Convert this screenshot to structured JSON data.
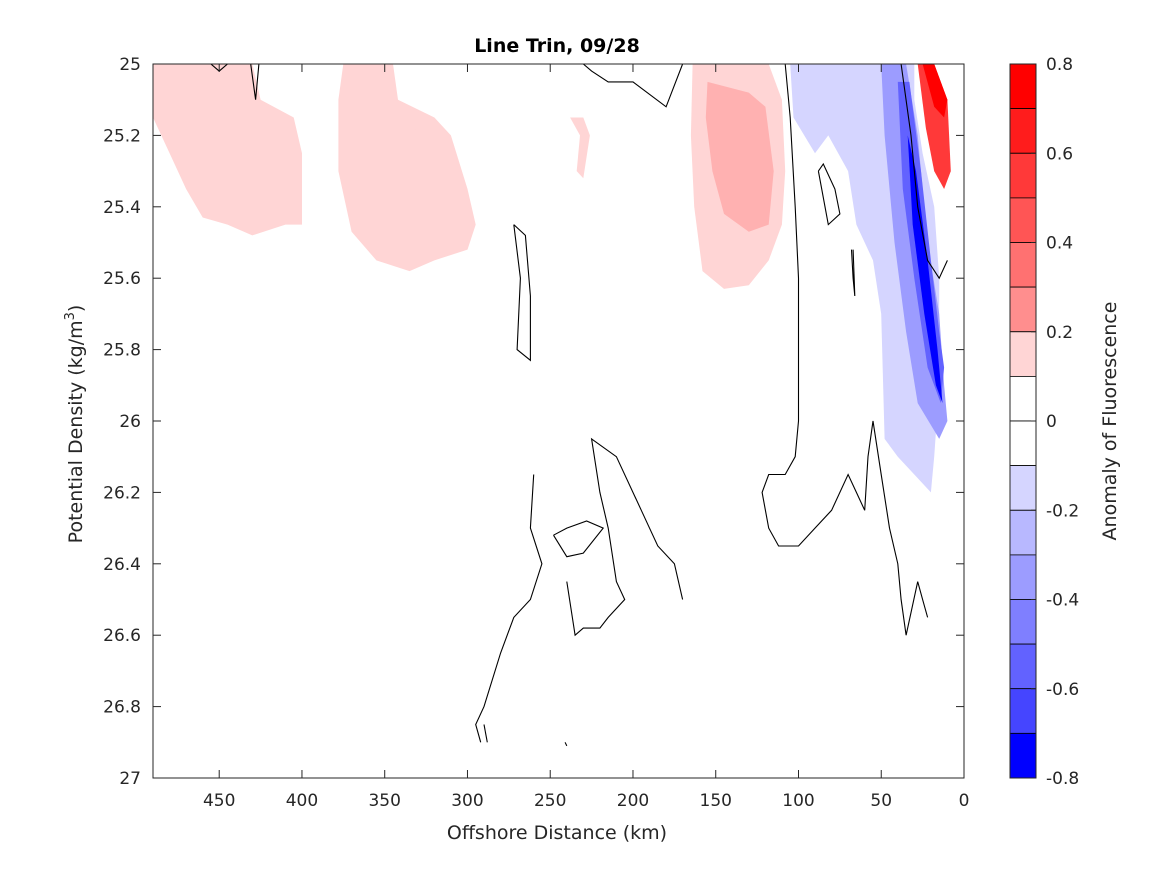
{
  "chart_data": {
    "type": "contour",
    "title": "Line Trin, 09/28",
    "xlabel": "Offshore Distance (km)",
    "ylabel": "Potential Density (kg/m",
    "ylabel_sup": "3",
    "ylabel_close": ")",
    "xlim": [
      490,
      0
    ],
    "x_reversed": true,
    "ylim": [
      25,
      27
    ],
    "y_reversed": true,
    "x_ticks": [
      450,
      400,
      350,
      300,
      250,
      200,
      150,
      100,
      50,
      0
    ],
    "y_ticks": [
      25,
      25.2,
      25.4,
      25.6,
      25.8,
      26,
      26.2,
      26.4,
      26.6,
      26.8,
      27
    ],
    "y_tick_labels": [
      "25",
      "25.2",
      "25.4",
      "25.6",
      "25.8",
      "26",
      "26.2",
      "26.4",
      "26.6",
      "26.8",
      "27"
    ],
    "colorbar": {
      "label": "Anomaly of Fluorescence",
      "clim": [
        -0.8,
        0.8
      ],
      "ticks": [
        0.8,
        0.6,
        0.4,
        0.2,
        0,
        -0.2,
        -0.4,
        -0.6,
        -0.8
      ],
      "tick_labels": [
        "0.8",
        "0.6",
        "0.4",
        "0.2",
        "0",
        "-0.2",
        "-0.4",
        "-0.6",
        "-0.8"
      ],
      "levels": [
        {
          "range": [
            0.7,
            0.8
          ],
          "color": "#ff0000"
        },
        {
          "range": [
            0.6,
            0.7
          ],
          "color": "#ff1c1c"
        },
        {
          "range": [
            0.5,
            0.6
          ],
          "color": "#ff3939"
        },
        {
          "range": [
            0.4,
            0.5
          ],
          "color": "#ff5555"
        },
        {
          "range": [
            0.3,
            0.4
          ],
          "color": "#ff7171"
        },
        {
          "range": [
            0.2,
            0.3
          ],
          "color": "#ff8e8e"
        },
        {
          "range": [
            0.1,
            0.2
          ],
          "color": "#ffd5d5"
        },
        {
          "range": [
            0,
            0.1
          ],
          "color": "#ffffff"
        },
        {
          "range": [
            -0.1,
            0
          ],
          "color": "#ffffff"
        },
        {
          "range": [
            -0.2,
            -0.1
          ],
          "color": "#d5d5ff"
        },
        {
          "range": [
            -0.3,
            -0.2
          ],
          "color": "#b8b8ff"
        },
        {
          "range": [
            -0.4,
            -0.3
          ],
          "color": "#9c9cff"
        },
        {
          "range": [
            -0.5,
            -0.4
          ],
          "color": "#7f7fff"
        },
        {
          "range": [
            -0.6,
            -0.5
          ],
          "color": "#6262ff"
        },
        {
          "range": [
            -0.7,
            -0.6
          ],
          "color": "#4545ff"
        },
        {
          "range": [
            -0.8,
            -0.7
          ],
          "color": "#0000ff"
        }
      ]
    },
    "filled_regions": [
      {
        "level": 0.15,
        "color": "#ffd5d5",
        "points": [
          [
            490,
            25
          ],
          [
            430,
            25
          ],
          [
            425,
            25.1
          ],
          [
            405,
            25.15
          ],
          [
            400,
            25.25
          ],
          [
            400,
            25.45
          ],
          [
            410,
            25.45
          ],
          [
            430,
            25.48
          ],
          [
            445,
            25.45
          ],
          [
            460,
            25.43
          ],
          [
            470,
            25.35
          ],
          [
            480,
            25.25
          ],
          [
            490,
            25.15
          ]
        ]
      },
      {
        "level": 0.15,
        "color": "#ffd5d5",
        "points": [
          [
            375,
            25
          ],
          [
            345,
            25
          ],
          [
            342,
            25.1
          ],
          [
            320,
            25.15
          ],
          [
            310,
            25.2
          ],
          [
            300,
            25.35
          ],
          [
            295,
            25.45
          ],
          [
            300,
            25.52
          ],
          [
            320,
            25.55
          ],
          [
            335,
            25.58
          ],
          [
            355,
            25.55
          ],
          [
            370,
            25.47
          ],
          [
            378,
            25.3
          ],
          [
            378,
            25.1
          ]
        ]
      },
      {
        "level": 0.15,
        "color": "#ffd5d5",
        "points": [
          [
            238,
            25.15
          ],
          [
            232,
            25.2
          ],
          [
            234,
            25.3
          ],
          [
            230,
            25.32
          ],
          [
            226,
            25.2
          ],
          [
            230,
            25.15
          ]
        ]
      },
      {
        "level": 0.15,
        "color": "#ffd5d5",
        "points": [
          [
            164,
            25
          ],
          [
            118,
            25
          ],
          [
            110,
            25.1
          ],
          [
            108,
            25.3
          ],
          [
            110,
            25.45
          ],
          [
            118,
            25.55
          ],
          [
            130,
            25.62
          ],
          [
            145,
            25.63
          ],
          [
            158,
            25.58
          ],
          [
            163,
            25.4
          ],
          [
            165,
            25.2
          ]
        ]
      },
      {
        "level": 0.25,
        "color": "#ffb1b1",
        "points": [
          [
            155,
            25.05
          ],
          [
            130,
            25.08
          ],
          [
            120,
            25.12
          ],
          [
            115,
            25.3
          ],
          [
            118,
            25.45
          ],
          [
            130,
            25.47
          ],
          [
            145,
            25.42
          ],
          [
            152,
            25.3
          ],
          [
            156,
            25.15
          ]
        ]
      },
      {
        "level": 0.15,
        "color": "#ffd5d5",
        "points": [
          [
            331,
            25.18
          ],
          [
            329,
            25.2
          ],
          [
            331,
            25.22
          ],
          [
            333,
            25.2
          ]
        ]
      },
      {
        "level": -0.15,
        "color": "#d5d5ff",
        "points": [
          [
            108,
            25
          ],
          [
            82,
            25
          ],
          [
            60,
            25.02
          ],
          [
            42,
            25.02
          ],
          [
            38,
            25.4
          ],
          [
            38,
            25.85
          ],
          [
            35,
            26.05
          ],
          [
            28,
            26.12
          ],
          [
            22,
            26.17
          ],
          [
            18,
            26.05
          ],
          [
            25,
            25.85
          ],
          [
            30,
            25.6
          ],
          [
            40,
            25.35
          ],
          [
            45,
            25.1
          ],
          [
            48,
            25
          ],
          [
            105,
            25
          ],
          [
            103,
            25.15
          ],
          [
            90,
            25.25
          ],
          [
            82,
            25.2
          ],
          [
            70,
            25.3
          ],
          [
            65,
            25.45
          ],
          [
            55,
            25.55
          ],
          [
            50,
            25.7
          ],
          [
            48,
            26.05
          ],
          [
            40,
            26.1
          ],
          [
            30,
            26.15
          ],
          [
            20,
            26.2
          ],
          [
            18,
            26.1
          ],
          [
            15,
            25.9
          ],
          [
            15,
            25.6
          ],
          [
            18,
            25.4
          ],
          [
            25,
            25.25
          ],
          [
            30,
            25.1
          ],
          [
            30,
            25
          ]
        ]
      },
      {
        "level": -0.3,
        "color": "#9c9cff",
        "points": [
          [
            50,
            25
          ],
          [
            35,
            25
          ],
          [
            28,
            25.2
          ],
          [
            22,
            25.5
          ],
          [
            15,
            25.7
          ],
          [
            12,
            25.9
          ],
          [
            10,
            26
          ],
          [
            15,
            26.05
          ],
          [
            28,
            25.95
          ],
          [
            35,
            25.75
          ],
          [
            42,
            25.5
          ],
          [
            48,
            25.2
          ]
        ]
      },
      {
        "level": -0.55,
        "color": "#6262ff",
        "points": [
          [
            40,
            25.05
          ],
          [
            33,
            25.05
          ],
          [
            26,
            25.3
          ],
          [
            20,
            25.55
          ],
          [
            15,
            25.75
          ],
          [
            12,
            25.85
          ],
          [
            14,
            25.95
          ],
          [
            22,
            25.85
          ],
          [
            30,
            25.6
          ],
          [
            37,
            25.35
          ]
        ]
      },
      {
        "level": -0.75,
        "color": "#0000ff",
        "points": [
          [
            34,
            25.2
          ],
          [
            29,
            25.3
          ],
          [
            22,
            25.55
          ],
          [
            16,
            25.8
          ],
          [
            13,
            25.95
          ],
          [
            17,
            25.9
          ],
          [
            24,
            25.7
          ],
          [
            31,
            25.45
          ]
        ]
      },
      {
        "level": 0.55,
        "color": "#ff3939",
        "points": [
          [
            28,
            25
          ],
          [
            18,
            25
          ],
          [
            10,
            25.1
          ],
          [
            8,
            25.3
          ],
          [
            12,
            25.35
          ],
          [
            18,
            25.3
          ],
          [
            23,
            25.18
          ]
        ]
      },
      {
        "level": 0.75,
        "color": "#ff0000",
        "points": [
          [
            25,
            25
          ],
          [
            18,
            25
          ],
          [
            10,
            25.1
          ],
          [
            12,
            25.15
          ],
          [
            18,
            25.12
          ]
        ]
      }
    ],
    "zero_contours": [
      [
        [
          455,
          25
        ],
        [
          450,
          25.02
        ],
        [
          445,
          25
        ]
      ],
      [
        [
          431,
          25
        ],
        [
          428,
          25.1
        ],
        [
          426,
          25
        ]
      ],
      [
        [
          170,
          25
        ],
        [
          180,
          25.12
        ],
        [
          200,
          25.05
        ],
        [
          215,
          25.05
        ],
        [
          225,
          25.02
        ],
        [
          230,
          25
        ]
      ],
      [
        [
          108,
          25
        ],
        [
          105,
          25.15
        ],
        [
          102,
          25.4
        ],
        [
          100,
          25.6
        ],
        [
          100,
          25.8
        ],
        [
          100,
          26
        ],
        [
          102,
          26.1
        ],
        [
          108,
          26.15
        ],
        [
          118,
          26.15
        ],
        [
          122,
          26.2
        ],
        [
          118,
          26.3
        ],
        [
          112,
          26.35
        ],
        [
          100,
          26.35
        ],
        [
          90,
          26.3
        ],
        [
          80,
          26.25
        ],
        [
          70,
          26.15
        ],
        [
          65,
          26.2
        ],
        [
          60,
          26.25
        ],
        [
          58,
          26.1
        ],
        [
          55,
          26.0
        ],
        [
          50,
          26.15
        ],
        [
          45,
          26.3
        ],
        [
          40,
          26.4
        ],
        [
          38,
          26.5
        ],
        [
          35,
          26.6
        ],
        [
          28,
          26.45
        ],
        [
          25,
          26.5
        ],
        [
          22,
          26.55
        ]
      ],
      [
        [
          260,
          26.15
        ],
        [
          262,
          26.3
        ],
        [
          255,
          26.4
        ],
        [
          262,
          26.5
        ],
        [
          272,
          26.55
        ],
        [
          280,
          26.65
        ],
        [
          290,
          26.8
        ],
        [
          295,
          26.85
        ],
        [
          292,
          26.9
        ]
      ],
      [
        [
          240,
          26.45
        ],
        [
          235,
          26.6
        ],
        [
          230,
          26.58
        ],
        [
          220,
          26.58
        ],
        [
          215,
          26.55
        ],
        [
          205,
          26.5
        ],
        [
          210,
          26.45
        ],
        [
          215,
          26.3
        ],
        [
          220,
          26.2
        ],
        [
          225,
          26.05
        ],
        [
          210,
          26.1
        ],
        [
          195,
          26.25
        ],
        [
          185,
          26.35
        ],
        [
          175,
          26.4
        ],
        [
          170,
          26.5
        ]
      ],
      [
        [
          290,
          26.85
        ],
        [
          288,
          26.9
        ]
      ],
      [
        [
          272,
          25.45
        ],
        [
          268,
          25.6
        ],
        [
          270,
          25.8
        ],
        [
          262,
          25.83
        ],
        [
          262,
          25.65
        ],
        [
          265,
          25.48
        ],
        [
          272,
          25.45
        ]
      ],
      [
        [
          248,
          26.32
        ],
        [
          240,
          26.38
        ],
        [
          230,
          26.37
        ],
        [
          218,
          26.3
        ],
        [
          228,
          26.28
        ],
        [
          240,
          26.3
        ],
        [
          248,
          26.32
        ]
      ],
      [
        [
          88,
          25.3
        ],
        [
          82,
          25.45
        ],
        [
          75,
          25.42
        ],
        [
          78,
          25.35
        ],
        [
          85,
          25.28
        ],
        [
          88,
          25.3
        ]
      ],
      [
        [
          68,
          25.52
        ],
        [
          67,
          25.6
        ],
        [
          66,
          25.65
        ],
        [
          67,
          25.52
        ]
      ],
      [
        [
          38,
          25
        ],
        [
          32,
          25.2
        ],
        [
          28,
          25.4
        ],
        [
          22,
          25.55
        ],
        [
          15,
          25.6
        ],
        [
          10,
          25.55
        ]
      ],
      [
        [
          241,
          26.9
        ],
        [
          240,
          26.91
        ]
      ]
    ]
  }
}
